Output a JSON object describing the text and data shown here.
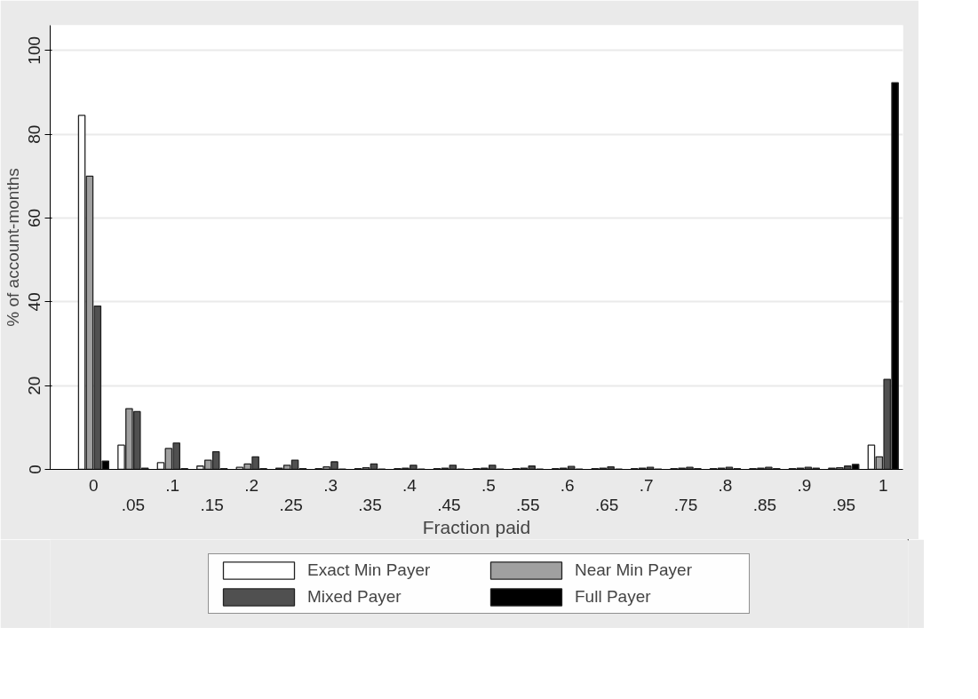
{
  "chart_data": {
    "type": "bar",
    "xlabel": "Fraction paid",
    "ylabel": "% of account-months",
    "categories": [
      "0",
      ".05",
      ".1",
      ".15",
      ".2",
      ".25",
      ".3",
      ".35",
      ".4",
      ".45",
      ".5",
      ".55",
      ".6",
      ".65",
      ".7",
      ".75",
      ".8",
      ".85",
      ".9",
      ".95",
      "1"
    ],
    "series": [
      {
        "name": "Exact Min Payer",
        "color": "#ffffff",
        "values": [
          84.5,
          5.8,
          1.6,
          0.8,
          0.5,
          0.3,
          0.2,
          0.2,
          0.2,
          0.2,
          0.2,
          0.2,
          0.2,
          0.2,
          0.2,
          0.2,
          0.2,
          0.2,
          0.2,
          0.3,
          5.8
        ]
      },
      {
        "name": "Near Min Payer",
        "color": "#a0a0a0",
        "values": [
          70,
          14.5,
          5,
          2.2,
          1.3,
          1,
          0.6,
          0.4,
          0.3,
          0.3,
          0.3,
          0.3,
          0.3,
          0.3,
          0.3,
          0.3,
          0.3,
          0.3,
          0.3,
          0.4,
          3
        ]
      },
      {
        "name": "Mixed Payer",
        "color": "#505050",
        "values": [
          39,
          13.8,
          6.3,
          4.2,
          3,
          2.2,
          1.8,
          1.3,
          1,
          1,
          1,
          0.8,
          0.7,
          0.6,
          0.5,
          0.5,
          0.5,
          0.5,
          0.5,
          0.8,
          21.5
        ]
      },
      {
        "name": "Full Payer",
        "color": "#000000",
        "values": [
          2,
          0.3,
          0.2,
          0.2,
          0.2,
          0.2,
          0.1,
          0.1,
          0.1,
          0.1,
          0.1,
          0.1,
          0.1,
          0.1,
          0.1,
          0.2,
          0.2,
          0.2,
          0.3,
          1.2,
          92.3
        ]
      }
    ],
    "ylim": [
      0,
      106
    ],
    "yticks": [
      0,
      20,
      40,
      60,
      80,
      100
    ],
    "grid": "y",
    "legend": "bottom"
  }
}
